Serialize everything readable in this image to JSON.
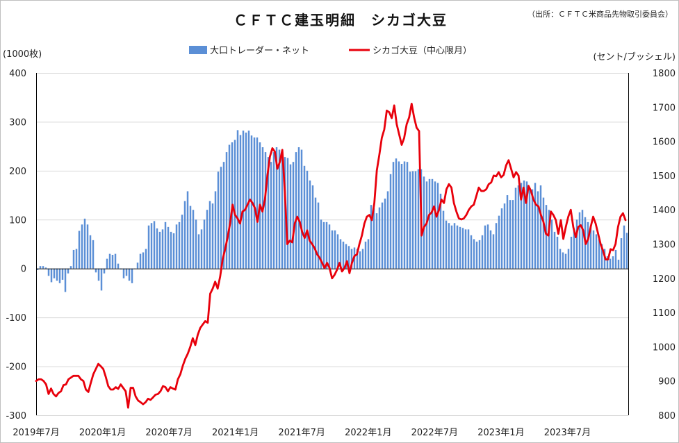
{
  "chart_data": {
    "type": "bar+line",
    "title": "ＣＦＴＣ建玉明細　シカゴ大豆",
    "source": "（出所：ＣＦＴＣ米商品先物取引委員会）",
    "left_unit": "(1000枚)",
    "right_unit": "(セント/ブッシェル)",
    "ylim_left": [
      -300,
      400
    ],
    "ylim_right": [
      800,
      1800
    ],
    "yticks_left": [
      "400",
      "300",
      "200",
      "100",
      "0",
      "-100",
      "-200",
      "-300"
    ],
    "yticks_right": [
      "1800",
      "1700",
      "1600",
      "1500",
      "1400",
      "1300",
      "1200",
      "1100",
      "1000",
      "900",
      "800"
    ],
    "x_labels": [
      "2019年7月",
      "2020年1月",
      "2020年7月",
      "2021年1月",
      "2021年7月",
      "2022年1月",
      "2022年7月",
      "2023年1月",
      "2023年7月"
    ],
    "grid": "horizontal",
    "legend_position": "top-center",
    "colors": {
      "bars": "#5b8fd6",
      "line": "#e8000b"
    },
    "series": [
      {
        "name": "大口トレーダー・ネット",
        "type": "bar",
        "axis": "left",
        "values": [
          -3,
          5,
          5,
          2,
          -15,
          -28,
          -20,
          -25,
          -30,
          -23,
          -48,
          -10,
          5,
          38,
          40,
          77,
          90,
          102,
          90,
          68,
          58,
          -8,
          -25,
          -45,
          -10,
          20,
          30,
          28,
          30,
          10,
          -2,
          -20,
          -15,
          -25,
          -30,
          0,
          12,
          30,
          33,
          40,
          88,
          93,
          97,
          82,
          75,
          80,
          95,
          85,
          75,
          72,
          90,
          95,
          110,
          138,
          158,
          128,
          120,
          100,
          70,
          80,
          100,
          120,
          138,
          133,
          158,
          198,
          208,
          218,
          238,
          253,
          258,
          263,
          283,
          273,
          282,
          278,
          282,
          272,
          268,
          268,
          258,
          248,
          238,
          228,
          218,
          238,
          248,
          243,
          233,
          228,
          226,
          213,
          218,
          238,
          248,
          243,
          210,
          200,
          180,
          170,
          145,
          135,
          100,
          95,
          95,
          90,
          78,
          78,
          70,
          60,
          55,
          50,
          46,
          40,
          43,
          40,
          35,
          40,
          55,
          60,
          130,
          123,
          113,
          125,
          135,
          143,
          158,
          193,
          218,
          225,
          219,
          214,
          219,
          218,
          198,
          199,
          199,
          203,
          203,
          188,
          178,
          183,
          183,
          178,
          175,
          153,
          118,
          98,
          93,
          88,
          93,
          88,
          85,
          83,
          80,
          80,
          68,
          60,
          55,
          58,
          68,
          88,
          90,
          78,
          70,
          93,
          108,
          123,
          133,
          150,
          140,
          140,
          165,
          170,
          175,
          180,
          178,
          165,
          162,
          175,
          158,
          170,
          145,
          130,
          120,
          100,
          75,
          65,
          40,
          33,
          30,
          40,
          65,
          78,
          100,
          115,
          120,
          105,
          95,
          85,
          78,
          70,
          60,
          50,
          40,
          25,
          20,
          25,
          38,
          18,
          62,
          88,
          73
        ]
      },
      {
        "name": "シカゴ大豆（中心限月）",
        "type": "line",
        "axis": "right",
        "values": [
          900,
          905,
          905,
          900,
          890,
          862,
          878,
          862,
          855,
          865,
          870,
          888,
          890,
          905,
          910,
          915,
          915,
          915,
          905,
          900,
          875,
          868,
          895,
          920,
          935,
          950,
          943,
          935,
          912,
          885,
          875,
          875,
          882,
          877,
          890,
          880,
          870,
          822,
          880,
          880,
          855,
          843,
          838,
          832,
          838,
          848,
          845,
          852,
          860,
          862,
          870,
          885,
          882,
          870,
          882,
          878,
          875,
          905,
          920,
          945,
          965,
          980,
          1000,
          1025,
          1005,
          1035,
          1055,
          1065,
          1075,
          1070,
          1155,
          1170,
          1190,
          1170,
          1205,
          1255,
          1285,
          1320,
          1360,
          1415,
          1385,
          1375,
          1360,
          1395,
          1400,
          1415,
          1430,
          1420,
          1405,
          1365,
          1415,
          1395,
          1430,
          1500,
          1555,
          1580,
          1570,
          1520,
          1540,
          1575,
          1455,
          1300,
          1310,
          1305,
          1360,
          1380,
          1365,
          1335,
          1318,
          1340,
          1310,
          1300,
          1288,
          1270,
          1260,
          1245,
          1230,
          1245,
          1230,
          1200,
          1210,
          1225,
          1245,
          1220,
          1230,
          1250,
          1215,
          1245,
          1265,
          1270,
          1300,
          1325,
          1360,
          1380,
          1385,
          1370,
          1420,
          1515,
          1560,
          1610,
          1635,
          1690,
          1685,
          1668,
          1705,
          1650,
          1620,
          1590,
          1610,
          1650,
          1670,
          1710,
          1670,
          1640,
          1630,
          1325,
          1350,
          1360,
          1385,
          1392,
          1410,
          1380,
          1400,
          1430,
          1420,
          1460,
          1475,
          1465,
          1420,
          1395,
          1375,
          1372,
          1375,
          1385,
          1400,
          1410,
          1415,
          1440,
          1465,
          1455,
          1455,
          1460,
          1475,
          1480,
          1500,
          1498,
          1510,
          1495,
          1502,
          1530,
          1545,
          1520,
          1495,
          1510,
          1500,
          1430,
          1465,
          1420,
          1470,
          1455,
          1430,
          1415,
          1410,
          1385,
          1365,
          1330,
          1325,
          1395,
          1385,
          1370,
          1330,
          1370,
          1315,
          1350,
          1380,
          1400,
          1350,
          1320,
          1350,
          1355,
          1340,
          1300,
          1315,
          1350,
          1380,
          1360,
          1330,
          1300,
          1280,
          1255,
          1255,
          1285,
          1282,
          1300,
          1350,
          1380,
          1390,
          1370
        ]
      }
    ]
  }
}
